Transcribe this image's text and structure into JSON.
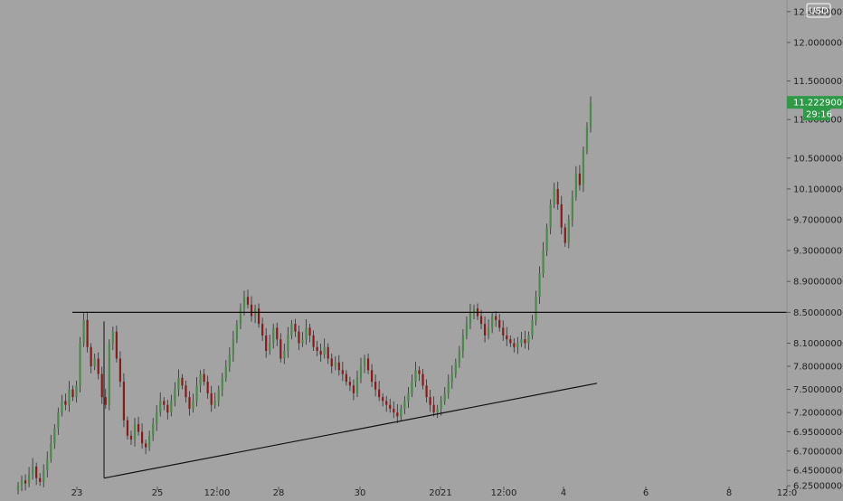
{
  "chart_data": {
    "type": "candlestick",
    "currency": "USD",
    "countdown": "29:16",
    "last_price_label": "11.22290000",
    "price_axis_labels": [
      "12.40000000",
      "12.00000000",
      "11.50000000",
      "11.22290000",
      "11.00000000",
      "10.50000000",
      "10.10000000",
      "9.70000000",
      "9.30000000",
      "8.90000000",
      "8.50000000",
      "8.10000000",
      "7.80000000",
      "7.50000000",
      "7.20000000",
      "6.95000000",
      "6.70000000",
      "6.45000000",
      "6.25000000"
    ],
    "time_axis_labels": [
      "23",
      "25",
      "12:00",
      "28",
      "30",
      "2021",
      "12:00",
      "4",
      "6",
      "8",
      "12:0"
    ],
    "colors": {
      "background": "#a3a3a3",
      "up_candle": "#4a8a4a",
      "down_candle": "#8a1a1a",
      "wick": "#2e2e2e",
      "last_price_tag": "#2e9a48",
      "drawing_line": "#111111",
      "axis_text": "#222222"
    },
    "drawings": {
      "horizontal_resistance": 8.5,
      "ascending_trendline": {
        "from": 6.35,
        "to": 7.58
      }
    },
    "series": [
      {
        "values": [
          6.25,
          6.32,
          6.28,
          6.4,
          6.5,
          6.35,
          6.3,
          6.45,
          6.6,
          6.8,
          7.0,
          7.2,
          7.35,
          7.3,
          7.5,
          7.4,
          7.55,
          8.1,
          8.4,
          8.05,
          7.8,
          7.9,
          7.7,
          7.4,
          7.3,
          8.1,
          8.25,
          7.9,
          7.6,
          7.1,
          6.9,
          6.85,
          7.05,
          6.95,
          6.8,
          6.75,
          6.9,
          7.05,
          7.2,
          7.35,
          7.3,
          7.2,
          7.35,
          7.5,
          7.65,
          7.55,
          7.4,
          7.25,
          7.35,
          7.55,
          7.7,
          7.6,
          7.45,
          7.3,
          7.35,
          7.5,
          7.65,
          7.8,
          7.95,
          8.15,
          8.35,
          8.55,
          8.7,
          8.6,
          8.45,
          8.55,
          8.35,
          8.2,
          8.0,
          8.1,
          8.3,
          8.15,
          7.9,
          8.0,
          8.2,
          8.35,
          8.25,
          8.1,
          8.15,
          8.3,
          8.2,
          8.05,
          8.0,
          7.95,
          8.05,
          7.9,
          7.8,
          7.85,
          7.75,
          7.7,
          7.6,
          7.55,
          7.45,
          7.65,
          7.8,
          7.9,
          7.75,
          7.6,
          7.5,
          7.4,
          7.35,
          7.3,
          7.25,
          7.2,
          7.15,
          7.25,
          7.35,
          7.45,
          7.6,
          7.75,
          7.7,
          7.55,
          7.4,
          7.3,
          7.2,
          7.25,
          7.35,
          7.45,
          7.6,
          7.7,
          7.85,
          8.0,
          8.2,
          8.35,
          8.5,
          8.55,
          8.45,
          8.35,
          8.2,
          8.3,
          8.45,
          8.4,
          8.3,
          8.2,
          8.15,
          8.1,
          8.05,
          8.1,
          8.15,
          8.1,
          8.2,
          8.4,
          8.7,
          9.0,
          9.3,
          9.6,
          9.9,
          10.1,
          9.9,
          9.6,
          9.4,
          9.7,
          10.0,
          10.3,
          10.15,
          10.6,
          10.9,
          11.22
        ]
      }
    ]
  }
}
